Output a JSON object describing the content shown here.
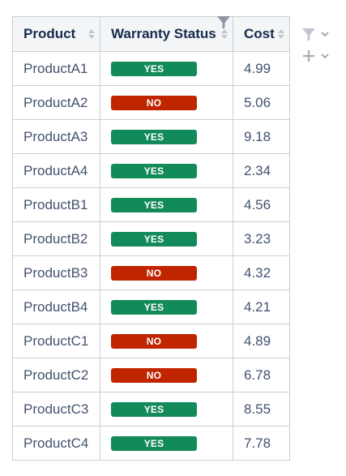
{
  "colors": {
    "yes": "#138a5a",
    "no": "#c02500",
    "header_bg": "#f4f5f7",
    "border": "#c9ced6",
    "icon_gray": "#a5adba"
  },
  "table": {
    "columns": [
      {
        "label": "Product",
        "sort_icon": "sort-icon"
      },
      {
        "label": "Warranty Status",
        "sort_icon": "sort-icon",
        "filter_icon": "funnel-icon"
      },
      {
        "label": "Cost",
        "sort_icon": "sort-icon"
      }
    ],
    "rows": [
      {
        "product": "ProductA1",
        "status": "YES",
        "cost": "4.99"
      },
      {
        "product": "ProductA2",
        "status": "NO",
        "cost": "5.06"
      },
      {
        "product": "ProductA3",
        "status": "YES",
        "cost": "9.18"
      },
      {
        "product": "ProductA4",
        "status": "YES",
        "cost": "2.34"
      },
      {
        "product": "ProductB1",
        "status": "YES",
        "cost": "4.56"
      },
      {
        "product": "ProductB2",
        "status": "YES",
        "cost": "3.23"
      },
      {
        "product": "ProductB3",
        "status": "NO",
        "cost": "4.32"
      },
      {
        "product": "ProductB4",
        "status": "YES",
        "cost": "4.21"
      },
      {
        "product": "ProductC1",
        "status": "NO",
        "cost": "4.89"
      },
      {
        "product": "ProductC2",
        "status": "NO",
        "cost": "6.78"
      },
      {
        "product": "ProductC3",
        "status": "YES",
        "cost": "8.55"
      },
      {
        "product": "ProductC4",
        "status": "YES",
        "cost": "7.78"
      }
    ]
  },
  "side_controls": [
    {
      "icon": "funnel-icon",
      "dropdown_icon": "chevron-down-icon"
    },
    {
      "icon": "plus-icon",
      "dropdown_icon": "chevron-down-icon"
    }
  ]
}
